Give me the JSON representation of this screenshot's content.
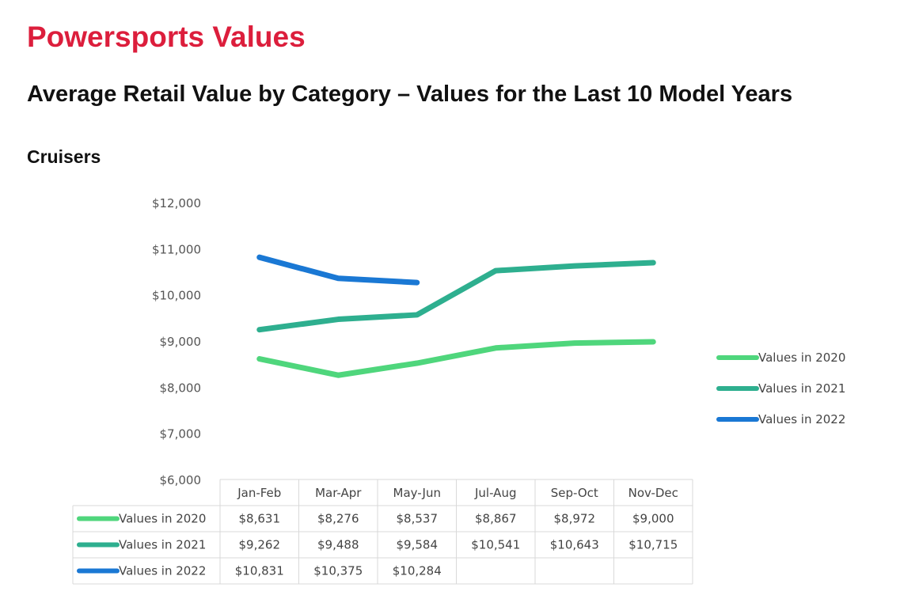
{
  "page": {
    "brand_title": "Powersports Values",
    "subtitle": "Average Retail Value by Category – Values for the Last 10 Model Years",
    "section_title": "Cruisers"
  },
  "chart_data": {
    "type": "line",
    "title": "Cruisers",
    "xlabel": "",
    "ylabel": "",
    "categories": [
      "Jan-Feb",
      "Mar-Apr",
      "May-Jun",
      "Jul-Aug",
      "Sep-Oct",
      "Nov-Dec"
    ],
    "ylim": [
      6000,
      12000
    ],
    "y_ticks": [
      6000,
      7000,
      8000,
      9000,
      10000,
      11000,
      12000
    ],
    "y_tick_labels": [
      "$6,000",
      "$7,000",
      "$8,000",
      "$9,000",
      "$10,000",
      "$11,000",
      "$12,000"
    ],
    "grid": false,
    "legend_position": "right",
    "series": [
      {
        "name": "Values in 2020",
        "color": "#4fd67c",
        "values": [
          8631,
          8276,
          8537,
          8867,
          8972,
          9000
        ],
        "labels": [
          "$8,631",
          "$8,276",
          "$8,537",
          "$8,867",
          "$8,972",
          "$9,000"
        ]
      },
      {
        "name": "Values in 2021",
        "color": "#2eaf8f",
        "values": [
          9262,
          9488,
          9584,
          10541,
          10643,
          10715
        ],
        "labels": [
          "$9,262",
          "$9,488",
          "$9,584",
          "$10,541",
          "$10,643",
          "$10,715"
        ]
      },
      {
        "name": "Values in 2022",
        "color": "#1a78d4",
        "values": [
          10831,
          10375,
          10284,
          null,
          null,
          null
        ],
        "labels": [
          "$10,831",
          "$10,375",
          "$10,284",
          "",
          "",
          ""
        ]
      }
    ]
  }
}
